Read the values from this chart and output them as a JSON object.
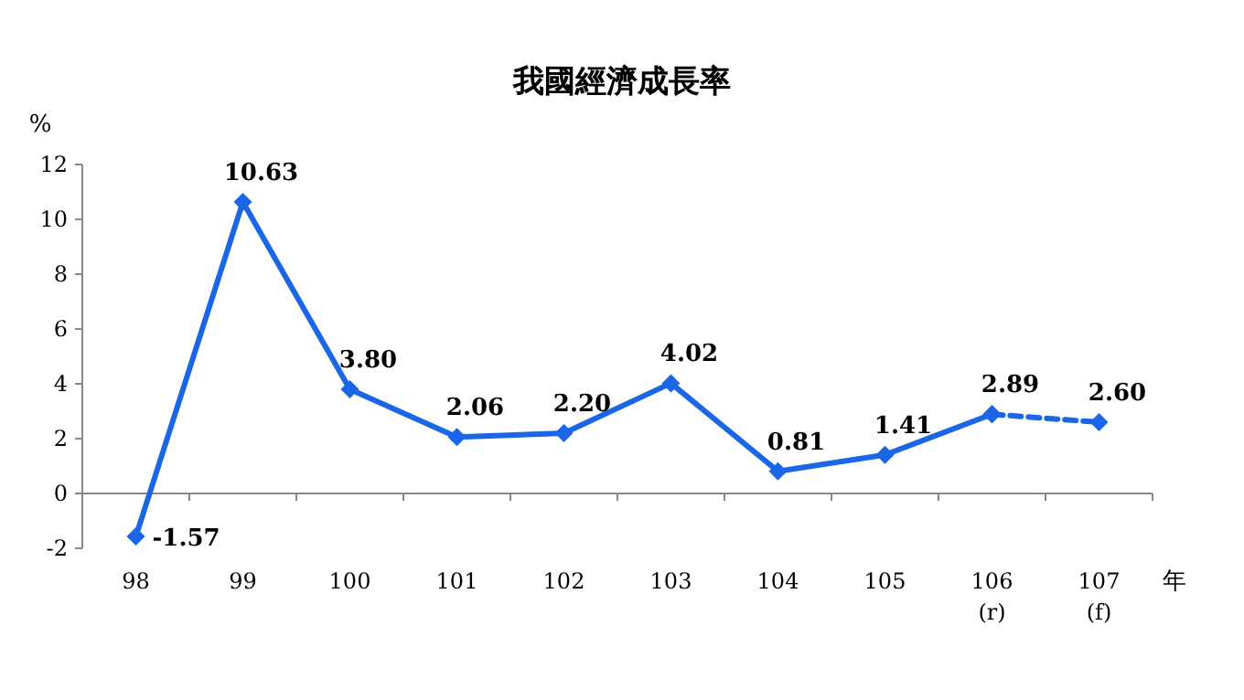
{
  "chart_data": {
    "type": "line",
    "title": "我國經濟成長率",
    "ylabel": "%",
    "xlabel": "年",
    "categories": [
      "98",
      "99",
      "100",
      "101",
      "102",
      "103",
      "104",
      "105",
      "106\n(r)",
      "107\n(f)"
    ],
    "series": [
      {
        "color": "#1a66e6",
        "line_style": "solid",
        "values": [
          -1.57,
          10.63,
          3.8,
          2.06,
          2.2,
          4.02,
          0.81,
          1.41,
          2.89,
          null
        ],
        "value_labels": [
          "-1.57",
          "10.63",
          "3.80",
          "2.06",
          "2.20",
          "4.02",
          "0.81",
          "1.41",
          "2.89",
          null
        ]
      },
      {
        "color": "#1a66e6",
        "line_style": "dashed",
        "values": [
          null,
          null,
          null,
          null,
          null,
          null,
          null,
          null,
          2.89,
          2.6
        ],
        "value_labels": [
          null,
          null,
          null,
          null,
          null,
          null,
          null,
          null,
          null,
          "2.60"
        ]
      }
    ],
    "ylim": [
      -2,
      12
    ],
    "yticks": [
      -2,
      0,
      2,
      4,
      6,
      8,
      10,
      12
    ],
    "marker": "diamond"
  }
}
